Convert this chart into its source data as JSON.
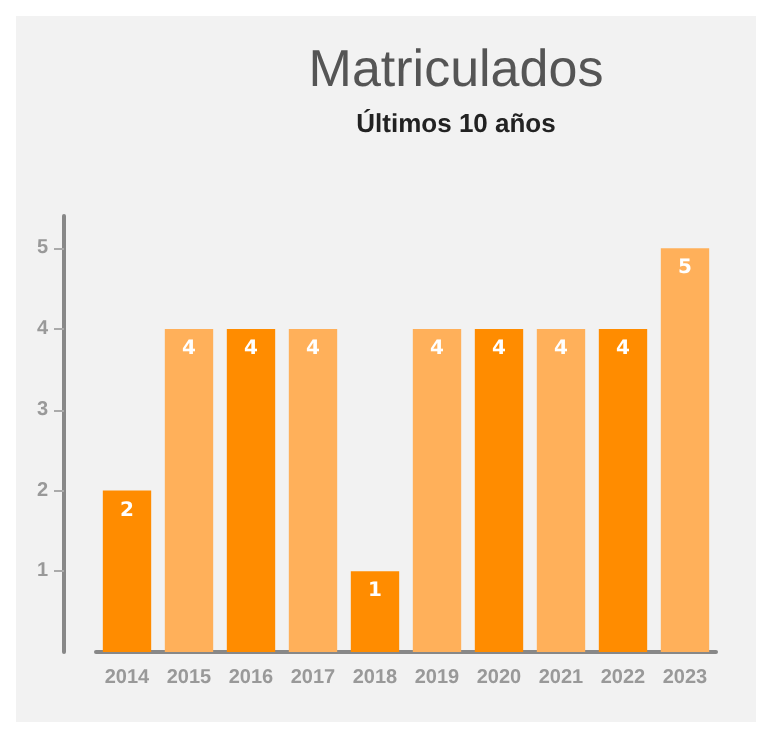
{
  "chart_data": {
    "type": "bar",
    "title": "Matriculados",
    "subtitle": "Últimos 10 años",
    "categories": [
      "2014",
      "2015",
      "2016",
      "2017",
      "2018",
      "2019",
      "2020",
      "2021",
      "2022",
      "2023"
    ],
    "values": [
      2,
      4,
      4,
      4,
      1,
      4,
      4,
      4,
      4,
      5
    ],
    "colors": [
      "#ff8c00",
      "#ffb05a",
      "#ff8c00",
      "#ffb05a",
      "#ff8c00",
      "#ffb05a",
      "#ff8c00",
      "#ffb05a",
      "#ff8c00",
      "#ffb05a"
    ],
    "ylim": [
      0,
      5.4
    ],
    "yticks": [
      1,
      2,
      3,
      4,
      5
    ],
    "grid": false,
    "data_labels": true
  }
}
